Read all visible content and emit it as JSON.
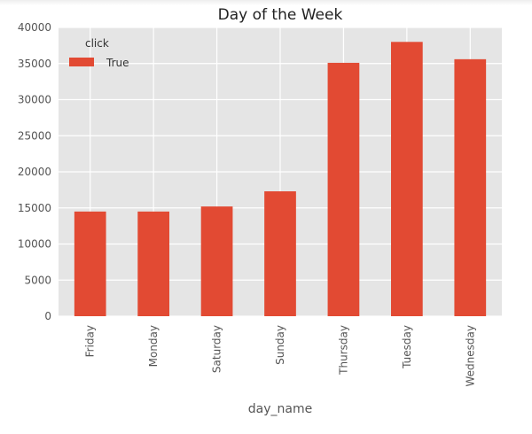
{
  "chart_data": {
    "type": "bar",
    "title": "Day of the Week",
    "xlabel": "day_name",
    "ylabel": "",
    "categories": [
      "Friday",
      "Monday",
      "Saturday",
      "Sunday",
      "Thursday",
      "Tuesday",
      "Wednesday"
    ],
    "series": [
      {
        "name": "True",
        "values": [
          14500,
          14500,
          15200,
          17300,
          35100,
          38000,
          35600
        ],
        "color": "#e24a33"
      }
    ],
    "ylim": [
      0,
      40000
    ],
    "yticks": [
      "0",
      "5000",
      "10000",
      "15000",
      "20000",
      "25000",
      "30000",
      "35000",
      "40000"
    ],
    "grid": true,
    "legend": {
      "title": "click",
      "placement": "top-left"
    },
    "colors": {
      "plot_background": "#e5e5e5",
      "grid": "#ffffff",
      "text": "#555555",
      "title": "#222222"
    }
  }
}
